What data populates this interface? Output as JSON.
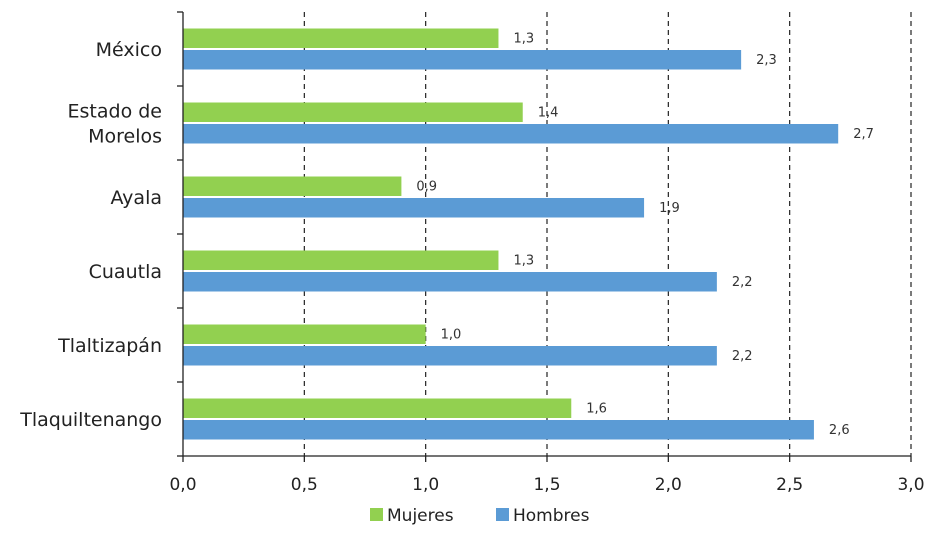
{
  "chart_data": {
    "type": "bar",
    "orientation": "horizontal",
    "title": "",
    "xlabel": "",
    "ylabel": "",
    "categories": [
      [
        "México"
      ],
      [
        "Estado de",
        "Morelos"
      ],
      [
        "Ayala"
      ],
      [
        "Cuautla"
      ],
      [
        "Tlaltizapán"
      ],
      [
        "Tlaquiltenango"
      ]
    ],
    "series": [
      {
        "name": "Mujeres",
        "color": "#92d050",
        "values": [
          1.3,
          1.4,
          0.9,
          1.3,
          1.0,
          1.6
        ],
        "labels": [
          "1,3",
          "1,4",
          "0,9",
          "1,3",
          "1,0",
          "1,6"
        ]
      },
      {
        "name": "Hombres",
        "color": "#5b9bd5",
        "values": [
          2.3,
          2.7,
          1.9,
          2.2,
          2.2,
          2.6
        ],
        "labels": [
          "2,3",
          "2,7",
          "1,9",
          "2,2",
          "2,2",
          "2,6"
        ]
      }
    ],
    "xlim": [
      0,
      3.0
    ],
    "xticks": [
      0,
      0.5,
      1.0,
      1.5,
      2.0,
      2.5,
      3.0
    ],
    "xtick_labels": [
      "0,0",
      "0,5",
      "1,0",
      "1,5",
      "2,0",
      "2,5",
      "3,0"
    ],
    "grid": "vertical-dashed",
    "legend_position": "bottom-center"
  }
}
